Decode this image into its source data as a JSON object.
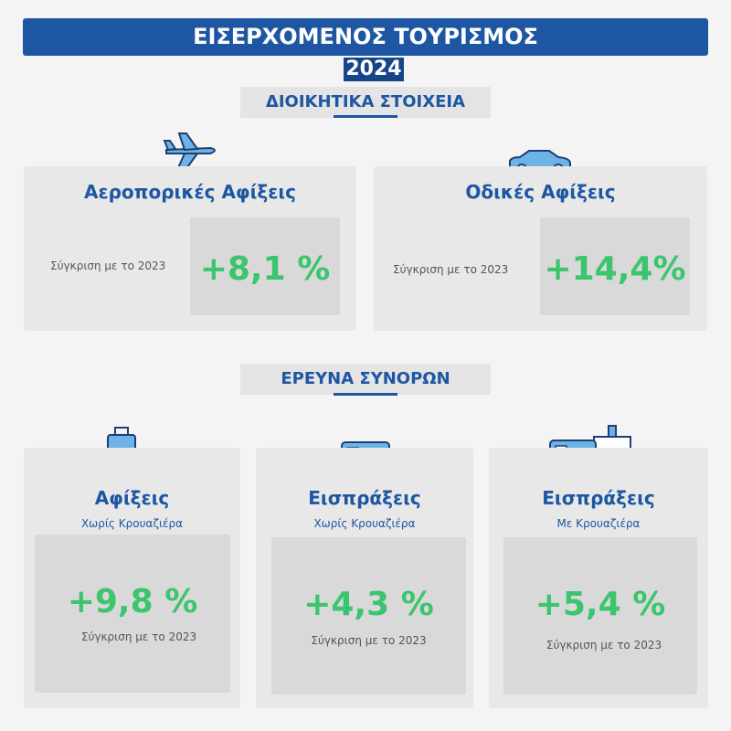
{
  "header": {
    "title": "ΕΙΣΕΡΧΟΜΕΝΟΣ ΤΟΥΡΙΣΜΟΣ",
    "year": "2024"
  },
  "sections": [
    {
      "title": "ΔΙΟΙΚΗΤΙΚΑ ΣΤΟΙΧΕΙΑ",
      "cards": [
        {
          "title": "Αεροπορικές Αφίξεις",
          "comparison": "Σύγκριση με το 2023",
          "value": "+8,1 %"
        },
        {
          "title": "Οδικές Αφίξεις",
          "comparison": "Σύγκριση με το 2023",
          "value": "+14,4%"
        }
      ]
    },
    {
      "title": "ΕΡΕΥΝΑ ΣΥΝΟΡΩΝ",
      "cards": [
        {
          "title": "Αφίξεις",
          "subtitle": "Χωρίς Κρουαζιέρα",
          "value": "+9,8 %",
          "comparison": "Σύγκριση με το 2023"
        },
        {
          "title": "Εισπράξεις",
          "subtitle": "Χωρίς Κρουαζιέρα",
          "value": "+4,3 %",
          "comparison": "Σύγκριση με το 2023"
        },
        {
          "title": "Εισπράξεις",
          "subtitle": "Με Κρουαζιέρα",
          "value": "+5,4 %",
          "comparison": "Σύγκριση με το 2023"
        }
      ]
    }
  ]
}
